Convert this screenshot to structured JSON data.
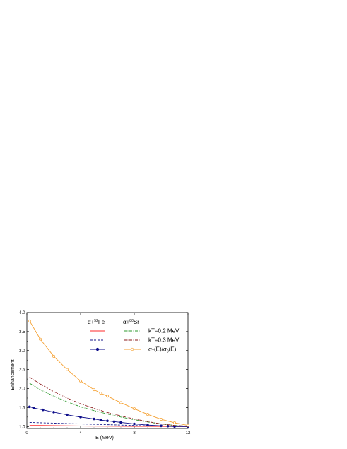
{
  "chart_data": {
    "type": "line",
    "xlabel": "E (MeV)",
    "ylabel": "Enhancement",
    "xlim": [
      0,
      12
    ],
    "ylim": [
      0.95,
      4.0
    ],
    "xticks": [
      0,
      4,
      8,
      12
    ],
    "xtick_labels": [
      "0",
      "4",
      "8",
      "12"
    ],
    "yticks": [
      1.0,
      1.5,
      2.0,
      2.5,
      3.0,
      3.5,
      4.0
    ],
    "ytick_labels": [
      "1.0",
      "1.5",
      "2.0",
      "2.5",
      "3.0",
      "3.5",
      "4.0"
    ],
    "grid": false,
    "legend_placement": "top-right",
    "legend": {
      "col1_header": {
        "prefix": "α+",
        "sup": "52",
        "base": "Fe"
      },
      "col2_header": {
        "prefix": "α+",
        "sup": "80",
        "base": "Sr"
      },
      "row_labels": [
        "kT=0.2 MeV",
        "kT=0.3 MeV"
      ],
      "row3_label": {
        "a": "σ",
        "sub1": "T",
        "b": "(E)/σ",
        "sub2": "0",
        "c": "(E)"
      }
    },
    "series": [
      {
        "name": "",
        "group": "Fe",
        "row": 1,
        "color": "#ff2a2a",
        "style": "solid",
        "x": [
          0.2,
          1,
          2,
          3,
          4,
          5,
          6,
          7,
          8,
          9,
          10,
          11,
          12
        ],
        "y": [
          1.03,
          1.03,
          1.025,
          1.02,
          1.015,
          1.012,
          1.01,
          1.008,
          1.006,
          1.004,
          1.003,
          1.002,
          1.0
        ]
      },
      {
        "name": "",
        "group": "Fe",
        "row": 2,
        "color": "#1a1a8a",
        "style": "dashed",
        "x": [
          0.2,
          1,
          2,
          3,
          4,
          5,
          6,
          7,
          8,
          9,
          10,
          11,
          12
        ],
        "y": [
          1.11,
          1.1,
          1.09,
          1.08,
          1.07,
          1.06,
          1.05,
          1.04,
          1.03,
          1.02,
          1.015,
          1.01,
          1.0
        ]
      },
      {
        "name": "",
        "group": "Fe",
        "row": 3,
        "color": "#0d0d8a",
        "style": "solid-marker",
        "x": [
          0.2,
          0.5,
          1.2,
          2,
          3,
          4,
          5,
          5.5,
          6,
          6.5,
          7,
          8,
          9,
          10,
          10.5,
          11,
          12
        ],
        "y": [
          1.52,
          1.49,
          1.44,
          1.38,
          1.31,
          1.25,
          1.2,
          1.17,
          1.15,
          1.13,
          1.11,
          1.07,
          1.04,
          1.02,
          1.01,
          1.0,
          1.0
        ]
      },
      {
        "name": "",
        "group": "Sr",
        "row": 1,
        "color": "#2e9a2e",
        "style": "dashdot",
        "x": [
          0.2,
          1,
          2,
          3,
          4,
          5,
          6,
          7,
          8,
          9,
          10,
          11,
          12
        ],
        "y": [
          2.14,
          1.97,
          1.8,
          1.65,
          1.52,
          1.42,
          1.33,
          1.25,
          1.18,
          1.12,
          1.07,
          1.03,
          1.01
        ]
      },
      {
        "name": "",
        "group": "Sr",
        "row": 2,
        "color": "#8a1a1a",
        "style": "dashdot",
        "x": [
          0.2,
          1,
          2,
          3,
          4,
          5,
          6,
          7,
          8,
          9,
          10,
          11,
          12
        ],
        "y": [
          2.3,
          2.12,
          1.92,
          1.75,
          1.6,
          1.48,
          1.37,
          1.28,
          1.2,
          1.13,
          1.07,
          1.03,
          1.01
        ]
      },
      {
        "name": "",
        "group": "Sr",
        "row": 3,
        "color": "#f5a030",
        "style": "solid-marker",
        "x": [
          0.2,
          1,
          2,
          3,
          4,
          5,
          5.5,
          6,
          7,
          8,
          9,
          10,
          11,
          12
        ],
        "y": [
          3.78,
          3.3,
          2.85,
          2.5,
          2.2,
          1.97,
          1.88,
          1.8,
          1.63,
          1.47,
          1.32,
          1.19,
          1.1,
          1.03
        ]
      }
    ]
  }
}
